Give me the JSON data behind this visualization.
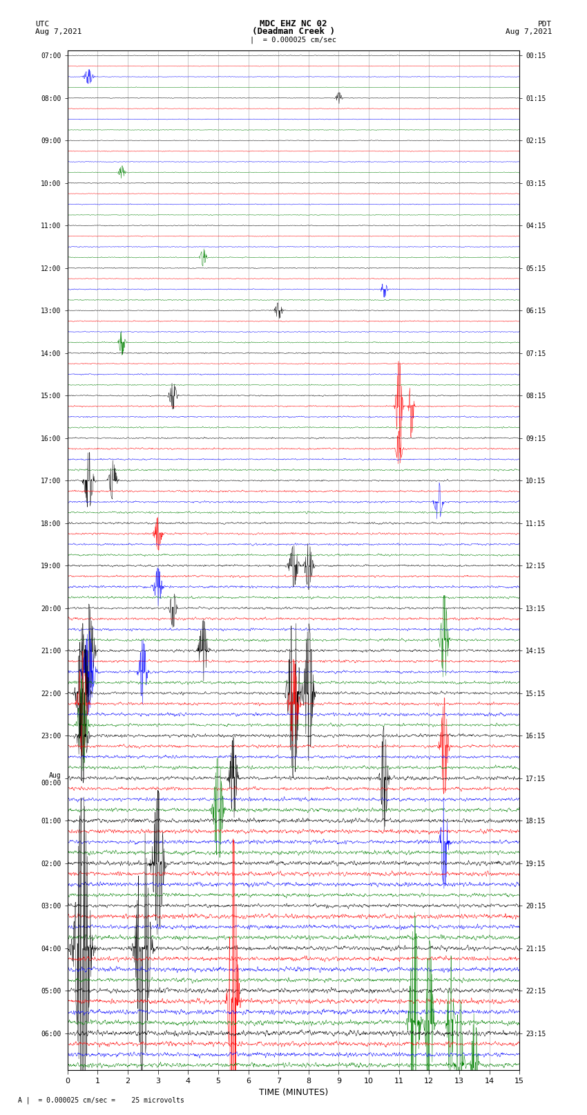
{
  "title_line1": "MDC EHZ NC 02",
  "title_line2": "(Deadman Creek )",
  "scale_text": "|  = 0.000025 cm/sec",
  "utc_label": "UTC",
  "utc_date": "Aug 7,2021",
  "pdt_label": "PDT",
  "pdt_date": "Aug 7,2021",
  "xlabel": "TIME (MINUTES)",
  "bottom_note": "A |  = 0.000025 cm/sec =    25 microvolts",
  "xmin": 0,
  "xmax": 15,
  "num_traces": 96,
  "colors_cycle": [
    "black",
    "red",
    "blue",
    "green"
  ],
  "bg_color": "white",
  "figwidth": 8.5,
  "figheight": 16.13,
  "utc_times_even": [
    "07:00",
    "08:00",
    "09:00",
    "10:00",
    "11:00",
    "12:00",
    "13:00",
    "14:00",
    "15:00",
    "16:00",
    "17:00",
    "18:00",
    "19:00",
    "20:00",
    "21:00",
    "22:00",
    "23:00",
    "Aug\n00:00",
    "01:00",
    "02:00",
    "03:00",
    "04:00",
    "05:00",
    "06:00"
  ],
  "pdt_times_even": [
    "00:15",
    "01:15",
    "02:15",
    "03:15",
    "04:15",
    "05:15",
    "06:15",
    "07:15",
    "08:15",
    "09:15",
    "10:15",
    "11:15",
    "12:15",
    "13:15",
    "14:15",
    "15:15",
    "16:15",
    "17:15",
    "18:15",
    "19:15",
    "20:15",
    "21:15",
    "22:15",
    "23:15"
  ],
  "noise_seed": 12345
}
